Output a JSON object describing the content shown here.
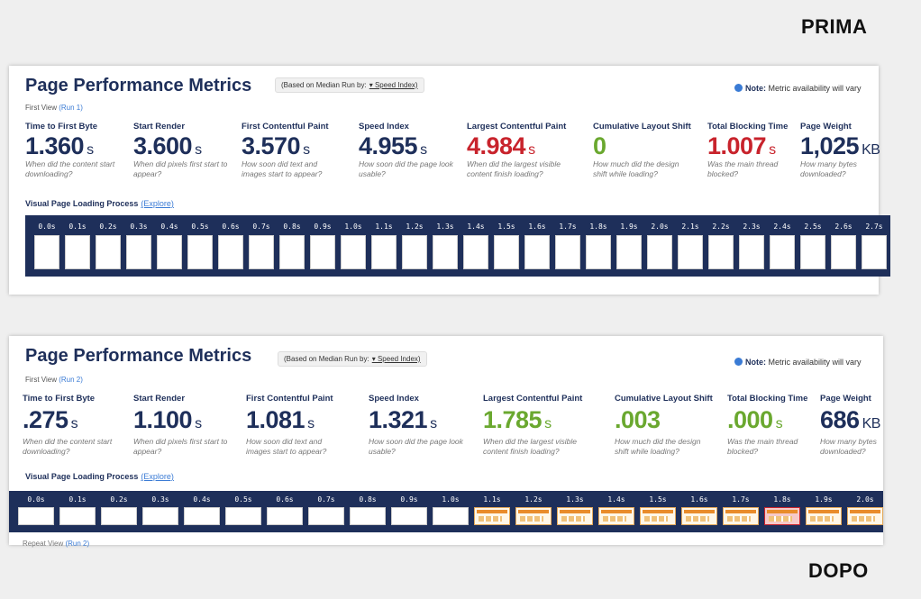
{
  "labels": {
    "before": "PRIMA",
    "after": "DOPO"
  },
  "panels": [
    {
      "title": "Page Performance Metrics",
      "based_on": "(Based on Median Run by:",
      "dropdown": "▾ Speed Index)",
      "note_label": "Note:",
      "note": "Metric availability will vary",
      "view": "First View",
      "run": "(Run 1)",
      "metrics": [
        {
          "name": "Time to First Byte",
          "value": "1.360",
          "unit": "s",
          "desc": "When did the content start downloading?"
        },
        {
          "name": "Start Render",
          "value": "3.600",
          "unit": "s",
          "desc": "When did pixels first start to appear?"
        },
        {
          "name": "First Contentful Paint",
          "value": "3.570",
          "unit": "s",
          "desc": "How soon did text and images start to appear?"
        },
        {
          "name": "Speed Index",
          "value": "4.955",
          "unit": "s",
          "desc": "How soon did the page look usable?"
        },
        {
          "name": "Largest Contentful Paint",
          "value": "4.984",
          "unit": "s",
          "desc": "When did the largest visible content finish loading?",
          "color": "#c8232c"
        },
        {
          "name": "Cumulative Layout Shift",
          "value": "0",
          "desc": "How much did the design shift while loading?",
          "color": "#6aa82f"
        },
        {
          "name": "Total Blocking Time",
          "value": "1.007",
          "unit": "s",
          "desc": "Was the main thread blocked?",
          "color": "#c8232c"
        },
        {
          "name": "Page Weight",
          "value": "1,025",
          "unit": "KB",
          "desc": "How many bytes downloaded?"
        }
      ],
      "loading_title": "Visual Page Loading Process",
      "explore": "(Explore)",
      "frames": [
        "0.0s",
        "0.1s",
        "0.2s",
        "0.3s",
        "0.4s",
        "0.5s",
        "0.6s",
        "0.7s",
        "0.8s",
        "0.9s",
        "1.0s",
        "1.1s",
        "1.2s",
        "1.3s",
        "1.4s",
        "1.5s",
        "1.6s",
        "1.7s",
        "1.8s",
        "1.9s",
        "2.0s",
        "2.1s",
        "2.2s",
        "2.3s",
        "2.4s",
        "2.5s",
        "2.6s",
        "2.7s"
      ]
    },
    {
      "title": "Page Performance Metrics",
      "based_on": "(Based on Median Run by:",
      "dropdown": "▾ Speed Index)",
      "note_label": "Note:",
      "note": "Metric availability will vary",
      "view": "First View",
      "run": "(Run 2)",
      "metrics": [
        {
          "name": "Time to First Byte",
          "value": ".275",
          "unit": "s",
          "desc": "When did the content start downloading?"
        },
        {
          "name": "Start Render",
          "value": "1.100",
          "unit": "s",
          "desc": "When did pixels first start to appear?"
        },
        {
          "name": "First Contentful Paint",
          "value": "1.081",
          "unit": "s",
          "desc": "How soon did text and images start to appear?"
        },
        {
          "name": "Speed Index",
          "value": "1.321",
          "unit": "s",
          "desc": "How soon did the page look usable?"
        },
        {
          "name": "Largest Contentful Paint",
          "value": "1.785",
          "unit": "s",
          "desc": "When did the largest visible content finish loading?",
          "color": "#6aa82f"
        },
        {
          "name": "Cumulative Layout Shift",
          "value": ".003",
          "desc": "How much did the design shift while loading?",
          "color": "#6aa82f"
        },
        {
          "name": "Total Blocking Time",
          "value": ".000",
          "unit": "s",
          "desc": "Was the main thread blocked?",
          "color": "#6aa82f"
        },
        {
          "name": "Page Weight",
          "value": "686",
          "unit": "KB",
          "desc": "How many bytes downloaded?"
        }
      ],
      "loading_title": "Visual Page Loading Process",
      "explore": "(Explore)",
      "frames": [
        "0.0s",
        "0.1s",
        "0.2s",
        "0.3s",
        "0.4s",
        "0.5s",
        "0.6s",
        "0.7s",
        "0.8s",
        "0.9s",
        "1.0s",
        "1.1s",
        "1.2s",
        "1.3s",
        "1.4s",
        "1.5s",
        "1.6s",
        "1.7s",
        "1.8s",
        "1.9s",
        "2.0s"
      ],
      "repeat_view": "Repeat View",
      "repeat_run": "(Run 2)"
    }
  ]
}
